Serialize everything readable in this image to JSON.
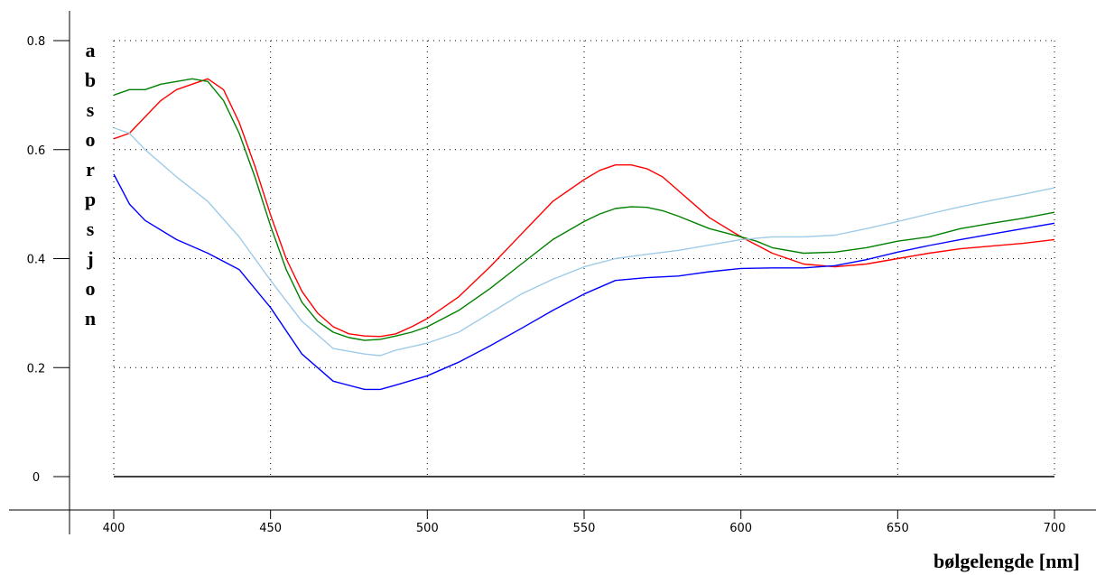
{
  "chart_data": {
    "type": "line",
    "title": "",
    "xlabel": "bølgelengde [nm]",
    "ylabel": "absorpsjon",
    "xlim": [
      400,
      700
    ],
    "ylim": [
      0,
      0.8
    ],
    "x_ticks": [
      400,
      450,
      500,
      550,
      600,
      650,
      700
    ],
    "x_tick_labels": [
      "400",
      "450",
      "500",
      "550",
      "600",
      "650",
      "700"
    ],
    "y_ticks": [
      0,
      0.2,
      0.4,
      0.6,
      0.8
    ],
    "y_tick_labels": [
      "0",
      "0.2",
      "0.4",
      "0.6",
      "0.8"
    ],
    "grid": true,
    "grid_style": "dotted",
    "legend": "none",
    "series": [
      {
        "color": "#ff0000",
        "x": [
          400,
          405,
          410,
          415,
          420,
          425,
          430,
          435,
          440,
          445,
          450,
          455,
          460,
          465,
          470,
          475,
          480,
          485,
          490,
          495,
          500,
          510,
          520,
          530,
          540,
          550,
          555,
          560,
          565,
          570,
          575,
          580,
          590,
          600,
          605,
          610,
          620,
          630,
          640,
          650,
          660,
          670,
          680,
          690,
          700
        ],
        "y": [
          0.62,
          0.63,
          0.66,
          0.69,
          0.71,
          0.72,
          0.73,
          0.71,
          0.65,
          0.57,
          0.48,
          0.4,
          0.34,
          0.3,
          0.275,
          0.262,
          0.258,
          0.257,
          0.262,
          0.275,
          0.29,
          0.33,
          0.385,
          0.445,
          0.505,
          0.545,
          0.562,
          0.572,
          0.572,
          0.565,
          0.55,
          0.525,
          0.475,
          0.44,
          0.425,
          0.41,
          0.39,
          0.385,
          0.39,
          0.4,
          0.41,
          0.418,
          0.423,
          0.428,
          0.435
        ]
      },
      {
        "color": "#008000",
        "x": [
          400,
          405,
          410,
          415,
          420,
          425,
          430,
          435,
          440,
          445,
          450,
          455,
          460,
          465,
          470,
          475,
          480,
          485,
          490,
          495,
          500,
          510,
          520,
          530,
          540,
          550,
          555,
          560,
          565,
          570,
          575,
          580,
          590,
          600,
          605,
          610,
          620,
          630,
          640,
          650,
          660,
          670,
          680,
          690,
          700
        ],
        "y": [
          0.7,
          0.71,
          0.71,
          0.72,
          0.725,
          0.73,
          0.725,
          0.69,
          0.63,
          0.55,
          0.46,
          0.38,
          0.32,
          0.285,
          0.265,
          0.255,
          0.25,
          0.252,
          0.258,
          0.265,
          0.275,
          0.305,
          0.345,
          0.39,
          0.435,
          0.468,
          0.482,
          0.492,
          0.495,
          0.494,
          0.488,
          0.478,
          0.455,
          0.44,
          0.432,
          0.42,
          0.41,
          0.412,
          0.42,
          0.432,
          0.44,
          0.455,
          0.465,
          0.474,
          0.485
        ]
      },
      {
        "color": "#9fcbe8",
        "x": [
          400,
          405,
          410,
          420,
          430,
          440,
          450,
          460,
          470,
          480,
          485,
          490,
          500,
          510,
          520,
          530,
          540,
          550,
          560,
          570,
          580,
          590,
          600,
          610,
          620,
          630,
          640,
          650,
          660,
          670,
          680,
          690,
          700
        ],
        "y": [
          0.64,
          0.63,
          0.6,
          0.55,
          0.505,
          0.44,
          0.36,
          0.285,
          0.235,
          0.225,
          0.222,
          0.232,
          0.245,
          0.265,
          0.3,
          0.335,
          0.362,
          0.385,
          0.4,
          0.408,
          0.415,
          0.425,
          0.435,
          0.44,
          0.44,
          0.443,
          0.455,
          0.468,
          0.482,
          0.495,
          0.507,
          0.518,
          0.53
        ]
      },
      {
        "color": "#0000ff",
        "x": [
          400,
          405,
          410,
          420,
          430,
          440,
          450,
          460,
          470,
          480,
          485,
          490,
          500,
          510,
          520,
          530,
          540,
          550,
          560,
          570,
          580,
          590,
          600,
          610,
          620,
          630,
          640,
          650,
          660,
          670,
          680,
          690,
          700
        ],
        "y": [
          0.555,
          0.5,
          0.47,
          0.435,
          0.41,
          0.38,
          0.31,
          0.225,
          0.175,
          0.16,
          0.16,
          0.168,
          0.185,
          0.21,
          0.24,
          0.272,
          0.305,
          0.335,
          0.36,
          0.365,
          0.368,
          0.376,
          0.382,
          0.383,
          0.383,
          0.387,
          0.398,
          0.412,
          0.424,
          0.435,
          0.445,
          0.455,
          0.465
        ]
      }
    ]
  }
}
